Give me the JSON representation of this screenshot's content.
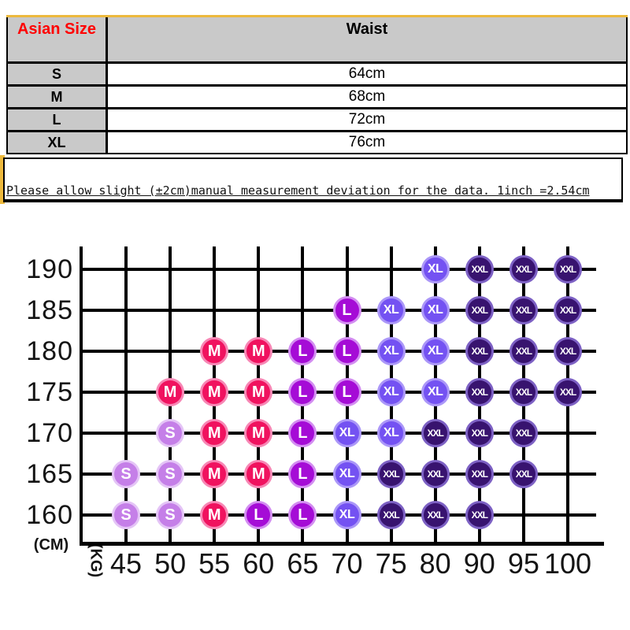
{
  "table": {
    "header": {
      "col1": "Asian Size",
      "col2": "Waist"
    },
    "rows": [
      {
        "size": "S",
        "waist": "64cm"
      },
      {
        "size": "M",
        "waist": "68cm"
      },
      {
        "size": "L",
        "waist": "72cm"
      },
      {
        "size": "XL",
        "waist": "76cm"
      }
    ],
    "note": "Please allow slight (±2cm)manual measurement deviation for the data. 1inch =2.54cm",
    "accent_red": "#ff0000",
    "header_bg": "#c9c9c9",
    "strip_yellow": "#edb93d"
  },
  "chart_data": {
    "type": "scatter",
    "xlabel": "(KG)",
    "ylabel": "(CM)",
    "x_ticks": [
      45,
      50,
      55,
      60,
      65,
      70,
      75,
      80,
      90,
      95,
      100
    ],
    "y_ticks": [
      190,
      185,
      180,
      175,
      170,
      165,
      160
    ],
    "grid": true,
    "legend": [
      "S",
      "M",
      "L",
      "XL",
      "XXL"
    ],
    "size_colors": {
      "S": {
        "fill": "#c57fe8",
        "ring": "#e4c4f6"
      },
      "M": {
        "fill": "#f0125f",
        "ring": "#f787b5"
      },
      "L": {
        "fill": "#a50cd6",
        "ring": "#d38df1"
      },
      "XL": {
        "fill": "#7452f2",
        "ring": "#ab97f8"
      },
      "XXL": {
        "fill": "#38136f",
        "ring": "#7d61c4"
      }
    },
    "points_format": [
      "height_cm",
      "weight_kg",
      "size"
    ],
    "points": [
      [
        190,
        80,
        "XL"
      ],
      [
        190,
        90,
        "XXL"
      ],
      [
        190,
        95,
        "XXL"
      ],
      [
        190,
        100,
        "XXL"
      ],
      [
        185,
        70,
        "L"
      ],
      [
        185,
        75,
        "XL"
      ],
      [
        185,
        80,
        "XL"
      ],
      [
        185,
        90,
        "XXL"
      ],
      [
        185,
        95,
        "XXL"
      ],
      [
        185,
        100,
        "XXL"
      ],
      [
        180,
        55,
        "M"
      ],
      [
        180,
        60,
        "M"
      ],
      [
        180,
        65,
        "L"
      ],
      [
        180,
        70,
        "L"
      ],
      [
        180,
        75,
        "XL"
      ],
      [
        180,
        80,
        "XL"
      ],
      [
        180,
        90,
        "XXL"
      ],
      [
        180,
        95,
        "XXL"
      ],
      [
        180,
        100,
        "XXL"
      ],
      [
        175,
        50,
        "M"
      ],
      [
        175,
        55,
        "M"
      ],
      [
        175,
        60,
        "M"
      ],
      [
        175,
        65,
        "L"
      ],
      [
        175,
        70,
        "L"
      ],
      [
        175,
        75,
        "XL"
      ],
      [
        175,
        80,
        "XL"
      ],
      [
        175,
        90,
        "XXL"
      ],
      [
        175,
        95,
        "XXL"
      ],
      [
        175,
        100,
        "XXL"
      ],
      [
        170,
        50,
        "S"
      ],
      [
        170,
        55,
        "M"
      ],
      [
        170,
        60,
        "M"
      ],
      [
        170,
        65,
        "L"
      ],
      [
        170,
        70,
        "XL"
      ],
      [
        170,
        75,
        "XL"
      ],
      [
        170,
        80,
        "XXL"
      ],
      [
        170,
        90,
        "XXL"
      ],
      [
        170,
        95,
        "XXL"
      ],
      [
        165,
        45,
        "S"
      ],
      [
        165,
        50,
        "S"
      ],
      [
        165,
        55,
        "M"
      ],
      [
        165,
        60,
        "M"
      ],
      [
        165,
        65,
        "L"
      ],
      [
        165,
        70,
        "XL"
      ],
      [
        165,
        75,
        "XXL"
      ],
      [
        165,
        80,
        "XXL"
      ],
      [
        165,
        90,
        "XXL"
      ],
      [
        165,
        95,
        "XXL"
      ],
      [
        160,
        45,
        "S"
      ],
      [
        160,
        50,
        "S"
      ],
      [
        160,
        55,
        "M"
      ],
      [
        160,
        60,
        "L"
      ],
      [
        160,
        65,
        "L"
      ],
      [
        160,
        70,
        "XL"
      ],
      [
        160,
        75,
        "XXL"
      ],
      [
        160,
        80,
        "XXL"
      ],
      [
        160,
        90,
        "XXL"
      ]
    ]
  }
}
